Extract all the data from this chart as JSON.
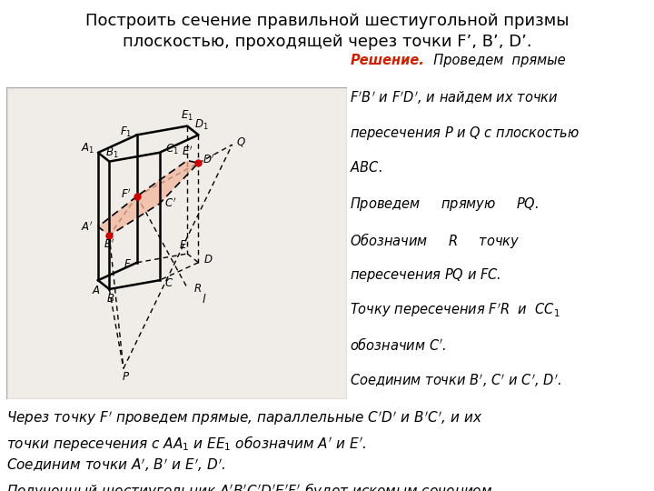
{
  "title": "Построить сечение правильной шестиугольной призмы\nплоскостью, проходящей через точки F’, B’, D’.",
  "title_fontsize": 13,
  "bg_color": "#ffffff",
  "section_fill_color": "#f2b49a",
  "section_fill_alpha": 0.75,
  "prism_lw": 1.8,
  "dashed_lw": 1.0,
  "dot_color": "#cc0000",
  "dot_size": 5,
  "label_fontsize": 8.5,
  "diagram_bg": "#f0ece8",
  "diagram_border": "#aaaaaa"
}
